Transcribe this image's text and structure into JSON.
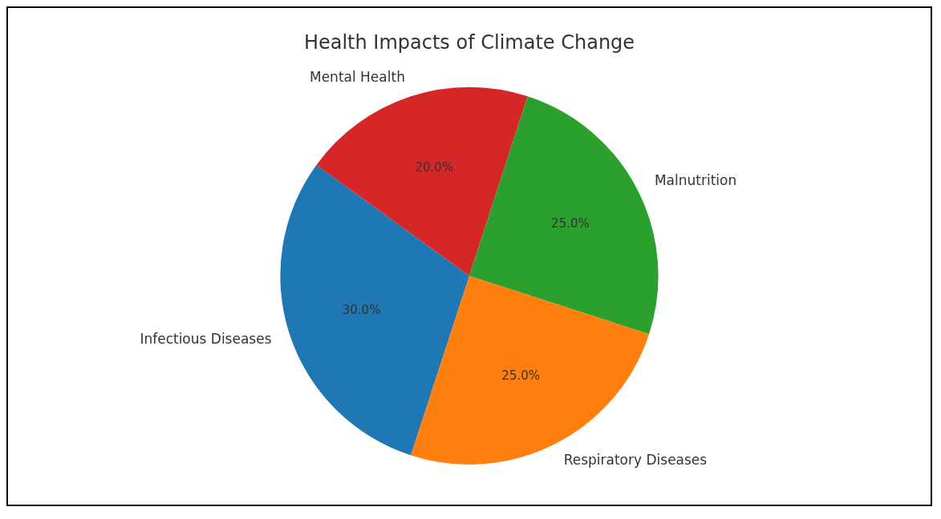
{
  "chart_data": {
    "type": "pie",
    "title": "Health Impacts of Climate Change",
    "categories": [
      "Infectious Diseases",
      "Mental Health",
      "Malnutrition",
      "Respiratory Diseases"
    ],
    "values": [
      30,
      20,
      25,
      25
    ],
    "colors": [
      "#1f77b4",
      "#d62728",
      "#2ca02c",
      "#ff7f0e"
    ],
    "value_labels": [
      "30.0%",
      "20.0%",
      "25.0%",
      "25.0%"
    ],
    "legend": false
  }
}
